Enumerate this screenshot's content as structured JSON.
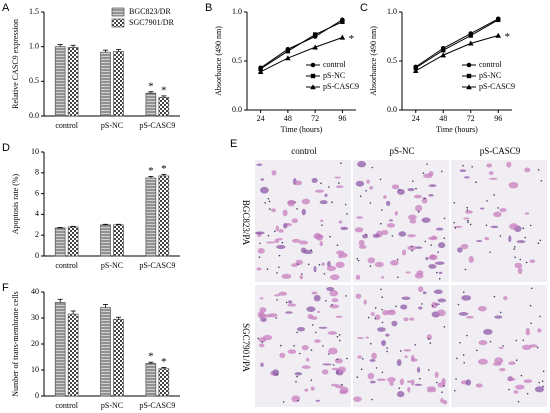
{
  "chart_data": [
    {
      "panel_label": "A",
      "type": "bar",
      "ylabel": "Relative CASC9 expression",
      "categories": [
        "control",
        "pS-NC",
        "pS-CASC9"
      ],
      "series": [
        {
          "name": "BGC823/DR",
          "color": "#555555",
          "pattern": "stripes",
          "values": [
            1.0,
            0.92,
            0.33
          ],
          "errors": [
            0.03,
            0.03,
            0.02
          ],
          "significance": [
            null,
            null,
            "*"
          ]
        },
        {
          "name": "SGC7901/DR",
          "color": "#555555",
          "pattern": "checker",
          "values": [
            0.99,
            0.93,
            0.27
          ],
          "errors": [
            0.03,
            0.03,
            0.02
          ],
          "significance": [
            null,
            null,
            "*"
          ]
        }
      ],
      "ylim": [
        0,
        1.5
      ],
      "yticks": [
        {
          "value": 0,
          "label": "0.0"
        },
        {
          "value": 0.5,
          "label": "0.5"
        },
        {
          "value": 1,
          "label": "1.0"
        },
        {
          "value": 1.5,
          "label": "1.5"
        }
      ],
      "legend": "top-right"
    },
    {
      "panel_label": "B",
      "type": "line",
      "ylabel": "Absorbance (490 nm)",
      "xlabel": "Time (hours)",
      "x": [
        24,
        48,
        72,
        96
      ],
      "series": [
        {
          "name": "control",
          "color": "#000000",
          "marker": "circle",
          "values": [
            0.43,
            0.62,
            0.75,
            0.92
          ]
        },
        {
          "name": "pS-NC",
          "color": "#000000",
          "marker": "square",
          "values": [
            0.42,
            0.6,
            0.77,
            0.9
          ]
        },
        {
          "name": "pS-CASC9",
          "color": "#000000",
          "marker": "triangle",
          "values": [
            0.39,
            0.53,
            0.64,
            0.74
          ],
          "significance": [
            null,
            null,
            null,
            "*"
          ]
        }
      ],
      "xlim": [
        12,
        108
      ],
      "xticks": [
        24,
        48,
        72,
        96
      ],
      "ylim": [
        0,
        1
      ],
      "yticks": [
        {
          "value": 0,
          "label": "0.0"
        },
        {
          "value": 0.5,
          "label": "0.5"
        },
        {
          "value": 1,
          "label": "1.0"
        }
      ],
      "legend": "bottom-right"
    },
    {
      "panel_label": "C",
      "type": "line",
      "ylabel": "Absorbance (490 nm)",
      "xlabel": "Time (hours)",
      "x": [
        24,
        48,
        72,
        96
      ],
      "series": [
        {
          "name": "control",
          "color": "#000000",
          "marker": "circle",
          "values": [
            0.44,
            0.63,
            0.78,
            0.93
          ]
        },
        {
          "name": "pS-NC",
          "color": "#000000",
          "marker": "square",
          "values": [
            0.43,
            0.61,
            0.76,
            0.92
          ]
        },
        {
          "name": "pS-CASC9",
          "color": "#000000",
          "marker": "triangle",
          "values": [
            0.4,
            0.56,
            0.68,
            0.76
          ],
          "significance": [
            null,
            null,
            null,
            "*"
          ]
        }
      ],
      "xlim": [
        12,
        108
      ],
      "xticks": [
        24,
        48,
        72,
        96
      ],
      "ylim": [
        0,
        1
      ],
      "yticks": [
        {
          "value": 0,
          "label": "0.0"
        },
        {
          "value": 0.5,
          "label": "0.5"
        },
        {
          "value": 1,
          "label": "1.0"
        }
      ],
      "legend": "bottom-right"
    },
    {
      "panel_label": "D",
      "type": "bar",
      "ylabel": "Apoptosis rate (%)",
      "categories": [
        "control",
        "pS-NC",
        "pS-CASC9"
      ],
      "series": [
        {
          "color": "#555555",
          "pattern": "stripes",
          "values": [
            2.7,
            3.0,
            7.5
          ],
          "errors": [
            0.05,
            0.05,
            0.15
          ],
          "significance": [
            null,
            null,
            "*"
          ]
        },
        {
          "color": "#555555",
          "pattern": "checker",
          "values": [
            2.8,
            3.0,
            7.7
          ],
          "errors": [
            0.05,
            0.05,
            0.15
          ],
          "significance": [
            null,
            null,
            "*"
          ]
        }
      ],
      "ylim": [
        0,
        10
      ],
      "yticks": [
        0,
        2,
        4,
        6,
        8,
        10
      ]
    },
    {
      "panel_label": "F",
      "type": "bar",
      "ylabel": "Number of trans-membrane cells",
      "categories": [
        "control",
        "pS-NC",
        "pS-CASC9"
      ],
      "series": [
        {
          "color": "#555555",
          "pattern": "stripes",
          "values": [
            36,
            34,
            12.5
          ],
          "errors": [
            1.2,
            1.2,
            0.5
          ],
          "significance": [
            null,
            null,
            "*"
          ]
        },
        {
          "color": "#555555",
          "pattern": "checker",
          "values": [
            31.5,
            29.5,
            10.5
          ],
          "errors": [
            1.2,
            0.8,
            0.5
          ],
          "significance": [
            null,
            null,
            "*"
          ]
        }
      ],
      "ylim": [
        0,
        40
      ],
      "yticks": [
        0,
        10,
        20,
        30,
        40
      ]
    }
  ],
  "panel_e": {
    "panel_label": "E",
    "columns": [
      "control",
      "pS-NC",
      "pS-CASC9"
    ],
    "rows": [
      "BGC823/PA",
      "SGC7901/PA"
    ]
  }
}
